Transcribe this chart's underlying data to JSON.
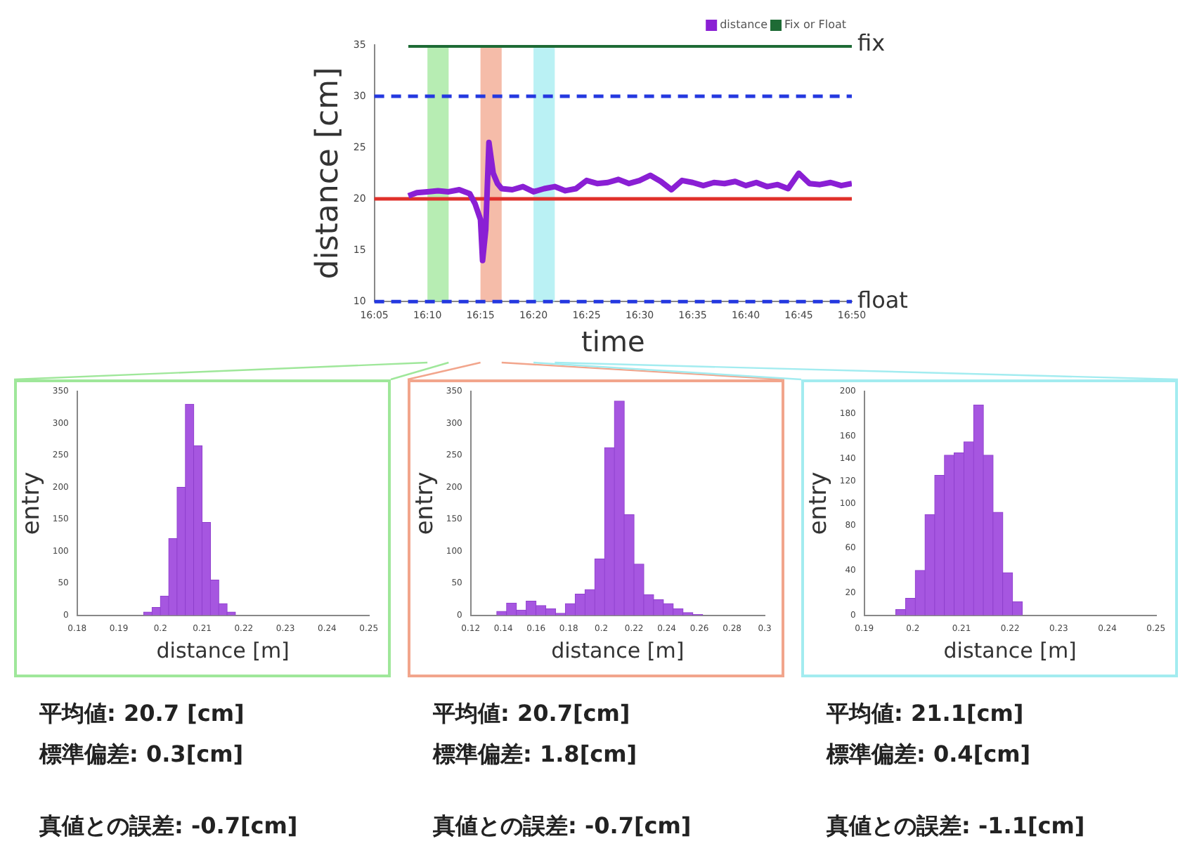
{
  "chart_data": [
    {
      "type": "line",
      "xlabel": "time",
      "ylabel": "distance [cm]",
      "legend": "top right",
      "xlim": [
        16.0833,
        16.8333
      ],
      "xticks": [
        {
          "value": 16.0833,
          "label": "16:05"
        },
        {
          "value": 16.1667,
          "label": "16:10"
        },
        {
          "value": 16.25,
          "label": "16:15"
        },
        {
          "value": 16.3333,
          "label": "16:20"
        },
        {
          "value": 16.4167,
          "label": "16:25"
        },
        {
          "value": 16.5,
          "label": "16:30"
        },
        {
          "value": 16.5833,
          "label": "16:35"
        },
        {
          "value": 16.6667,
          "label": "16:40"
        },
        {
          "value": 16.75,
          "label": "16:45"
        },
        {
          "value": 16.8333,
          "label": "16:50"
        }
      ],
      "ylim": [
        10,
        35
      ],
      "yticks": [
        10,
        15,
        20,
        25,
        30,
        35
      ],
      "series": [
        {
          "name": "distance",
          "color": "#8a1fd4",
          "x": [
            16.1367,
            16.15,
            16.1667,
            16.1833,
            16.2,
            16.2167,
            16.2333,
            16.2417,
            16.25,
            16.2533,
            16.2583,
            16.2633,
            16.27,
            16.2767,
            16.2833,
            16.3,
            16.3167,
            16.3333,
            16.35,
            16.3667,
            16.3833,
            16.4,
            16.4167,
            16.4333,
            16.45,
            16.4667,
            16.4833,
            16.5,
            16.5167,
            16.5333,
            16.55,
            16.5667,
            16.5833,
            16.6,
            16.6167,
            16.6333,
            16.65,
            16.6667,
            16.6833,
            16.7,
            16.7167,
            16.7333,
            16.75,
            16.7667,
            16.7833,
            16.8,
            16.8167,
            16.8333
          ],
          "values": [
            20.3,
            20.6,
            20.7,
            20.8,
            20.7,
            20.9,
            20.5,
            19.5,
            18.0,
            14.0,
            17.0,
            25.5,
            22.5,
            21.5,
            21.0,
            20.9,
            21.2,
            20.7,
            21.0,
            21.2,
            20.8,
            21.0,
            21.8,
            21.5,
            21.6,
            21.9,
            21.5,
            21.8,
            22.3,
            21.7,
            20.9,
            21.8,
            21.6,
            21.3,
            21.6,
            21.5,
            21.7,
            21.3,
            21.6,
            21.2,
            21.4,
            21.0,
            22.5,
            21.5,
            21.4,
            21.6,
            21.3,
            21.5
          ]
        },
        {
          "name": "Fix or Float",
          "color": "#1e6b35",
          "x": [
            16.1367,
            16.8333
          ],
          "values": [
            35,
            35
          ]
        }
      ],
      "ref_lines": [
        {
          "axis": "y",
          "value": 30,
          "color": "#2438e0",
          "line_style": "dashed"
        },
        {
          "axis": "y",
          "value": 10,
          "color": "#2438e0",
          "line_style": "dashed"
        },
        {
          "axis": "y",
          "value": 20,
          "color": "#e0302a",
          "line_style": "solid"
        }
      ],
      "bands": [
        {
          "axis": "x",
          "from": 16.1667,
          "to": 16.2,
          "color": "#9fe79a"
        },
        {
          "axis": "x",
          "from": 16.25,
          "to": 16.2833,
          "color": "#f2a58c"
        },
        {
          "axis": "x",
          "from": 16.3333,
          "to": 16.3667,
          "color": "#a3ecf0"
        }
      ],
      "annotations": [
        "fix",
        "float"
      ]
    },
    {
      "type": "histogram",
      "xlabel": "distance [m]",
      "ylabel": "entry",
      "color": "#a656e0",
      "bins": [
        0.196,
        0.198,
        0.2,
        0.202,
        0.204,
        0.206,
        0.208,
        0.21,
        0.212,
        0.214,
        0.216,
        0.218
      ],
      "values": [
        5,
        12,
        30,
        120,
        200,
        330,
        265,
        145,
        55,
        18,
        5
      ],
      "xlim": [
        0.18,
        0.25
      ],
      "xticks": [
        0.18,
        0.19,
        0.2,
        0.21,
        0.22,
        0.23,
        0.24,
        0.25
      ],
      "ylim": [
        0,
        350
      ],
      "yticks": [
        0,
        50,
        100,
        150,
        200,
        250,
        300,
        350
      ],
      "annotations": [
        "平均値: 20.7 [cm]",
        "標準偏差: 0.3[cm]",
        "真値との誤差: -0.7[cm]"
      ]
    },
    {
      "type": "histogram",
      "xlabel": "distance [m]",
      "ylabel": "entry",
      "color": "#a656e0",
      "bins": [
        0.136,
        0.142,
        0.148,
        0.154,
        0.16,
        0.166,
        0.172,
        0.178,
        0.184,
        0.19,
        0.196,
        0.202,
        0.208,
        0.214,
        0.22,
        0.226,
        0.232,
        0.238,
        0.244,
        0.25,
        0.256,
        0.262
      ],
      "values": [
        6,
        19,
        8,
        22,
        15,
        10,
        3,
        18,
        33,
        40,
        88,
        262,
        335,
        157,
        80,
        32,
        24,
        18,
        10,
        4,
        1
      ],
      "xlim": [
        0.12,
        0.3
      ],
      "xticks": [
        0.12,
        0.14,
        0.16,
        0.18,
        0.2,
        0.22,
        0.24,
        0.26,
        0.28,
        0.3
      ],
      "ylim": [
        0,
        350
      ],
      "yticks": [
        0,
        50,
        100,
        150,
        200,
        250,
        300,
        350
      ],
      "annotations": [
        "平均値: 20.7[cm]",
        "標準偏差: 1.8[cm]",
        "真値との誤差: -0.7[cm]"
      ]
    },
    {
      "type": "histogram",
      "xlabel": "distance [m]",
      "ylabel": "entry",
      "color": "#a656e0",
      "bins": [
        0.1965,
        0.1985,
        0.2005,
        0.2025,
        0.2045,
        0.2065,
        0.2085,
        0.2105,
        0.2125,
        0.2145,
        0.2165,
        0.2185,
        0.2205,
        0.2225
      ],
      "values": [
        5,
        15,
        40,
        90,
        125,
        143,
        145,
        155,
        188,
        143,
        92,
        38,
        12
      ],
      "xlim": [
        0.19,
        0.25
      ],
      "xticks": [
        0.19,
        0.2,
        0.21,
        0.22,
        0.23,
        0.24,
        0.25
      ],
      "ylim": [
        0,
        200
      ],
      "yticks": [
        0,
        20,
        40,
        60,
        80,
        100,
        120,
        140,
        160,
        180,
        200
      ],
      "annotations": [
        "平均値: 21.1[cm]",
        "標準偏差: 0.4[cm]",
        "真値との誤差: -1.1[cm]"
      ]
    }
  ]
}
